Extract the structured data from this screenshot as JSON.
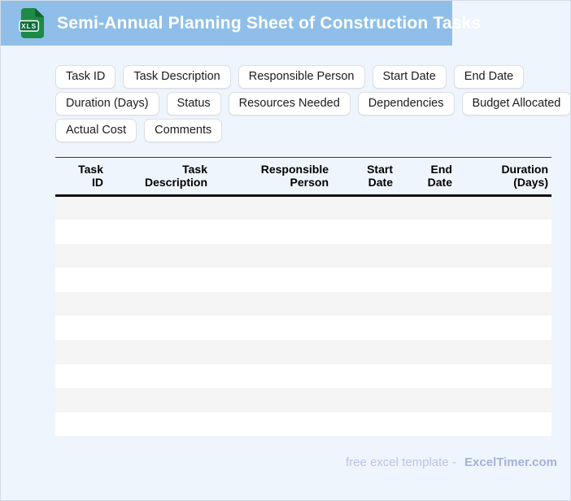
{
  "titlebar": {
    "title": "Semi-Annual Planning Sheet of Construction Tasks",
    "icon_label": "XLS"
  },
  "tags": {
    "rows": [
      [
        "Task ID",
        "Task Description",
        "Responsible Person",
        "Start Date",
        "End Date"
      ],
      [
        "Duration (Days)",
        "Status",
        "Resources Needed",
        "Dependencies",
        "Budget Allocated"
      ],
      [
        "Actual Cost",
        "Comments"
      ]
    ]
  },
  "table": {
    "columns": [
      {
        "line1": "Task",
        "line2": "ID"
      },
      {
        "line1": "Task",
        "line2": "Description"
      },
      {
        "line1": "Responsible",
        "line2": "Person"
      },
      {
        "line1": "Start",
        "line2": "Date"
      },
      {
        "line1": "End",
        "line2": "Date"
      },
      {
        "line1": "Duration",
        "line2": "(Days)"
      }
    ],
    "empty_rows": 10
  },
  "footer": {
    "text": "free excel template -",
    "brand": "ExcelTimer.com"
  },
  "colors": {
    "header_bar": "#8fbfe8",
    "page_background": "#eff5fd",
    "row_stripe": "#f5f5f5",
    "icon_green": "#1e8a46",
    "icon_badge_green": "#0d6b38",
    "footer_text": "#b9c5e8",
    "footer_brand": "#a2b2dc"
  }
}
